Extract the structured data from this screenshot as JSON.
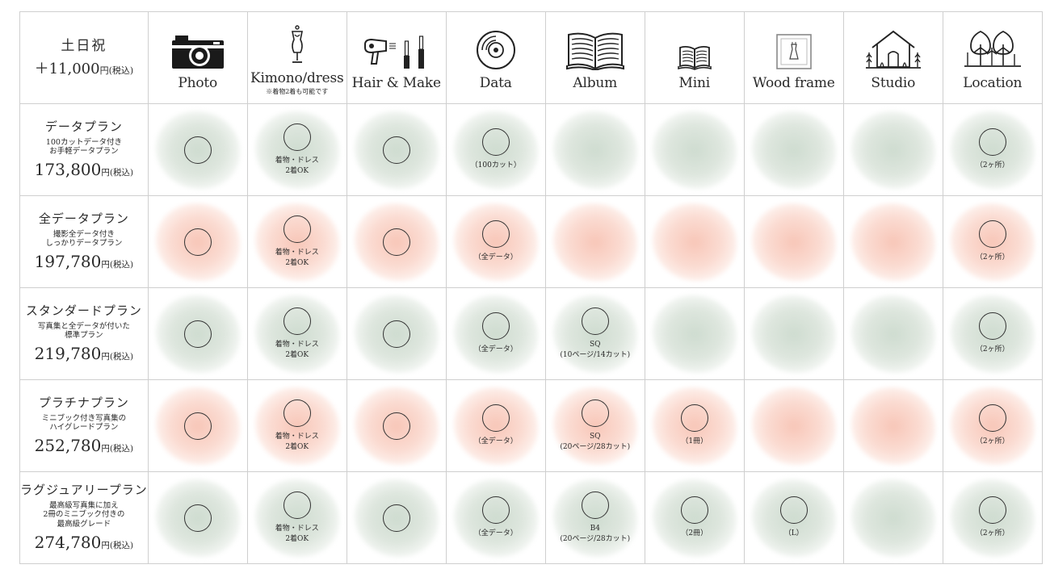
{
  "corner": {
    "days": "土日祝",
    "price": "＋11,000",
    "unit": "円(税込)"
  },
  "columns": [
    {
      "label": "Photo",
      "icon": "camera-icon",
      "note": ""
    },
    {
      "label": "Kimono/dress",
      "icon": "dress-form-icon",
      "note": "※着物2着も可能です"
    },
    {
      "label": "Hair & Make",
      "icon": "hairdryer-mascara-icon",
      "note": ""
    },
    {
      "label": "Data",
      "icon": "disc-icon",
      "note": ""
    },
    {
      "label": "Album",
      "icon": "open-book-icon",
      "note": ""
    },
    {
      "label": "Mini",
      "icon": "small-book-icon",
      "note": ""
    },
    {
      "label": "Wood frame",
      "icon": "frame-icon",
      "note": ""
    },
    {
      "label": "Studio",
      "icon": "studio-house-icon",
      "note": ""
    },
    {
      "label": "Location",
      "icon": "trees-icon",
      "note": ""
    }
  ],
  "plans": [
    {
      "name": "データプラン",
      "desc": "100カットデータ付き\nお手軽データプラン",
      "price": "173,800",
      "unit": "円(税込)",
      "tint": "green",
      "cells": [
        {
          "mark": true,
          "note": ""
        },
        {
          "mark": true,
          "note": "着物・ドレス\n2着OK"
        },
        {
          "mark": true,
          "note": ""
        },
        {
          "mark": true,
          "note": "（100カット）"
        },
        {
          "mark": false,
          "note": ""
        },
        {
          "mark": false,
          "note": ""
        },
        {
          "mark": false,
          "note": ""
        },
        {
          "mark": false,
          "note": ""
        },
        {
          "mark": true,
          "note": "（2ヶ所）"
        }
      ]
    },
    {
      "name": "全データプラン",
      "desc": "撮影全データ付き\nしっかりデータプラン",
      "price": "197,780",
      "unit": "円(税込)",
      "tint": "pink",
      "cells": [
        {
          "mark": true,
          "note": ""
        },
        {
          "mark": true,
          "note": "着物・ドレス\n2着OK"
        },
        {
          "mark": true,
          "note": ""
        },
        {
          "mark": true,
          "note": "（全データ）"
        },
        {
          "mark": false,
          "note": ""
        },
        {
          "mark": false,
          "note": ""
        },
        {
          "mark": false,
          "note": ""
        },
        {
          "mark": false,
          "note": ""
        },
        {
          "mark": true,
          "note": "（2ヶ所）"
        }
      ]
    },
    {
      "name": "スタンダードプラン",
      "desc": "写真集と全データが付いた\n標準プラン",
      "price": "219,780",
      "unit": "円(税込)",
      "tint": "green",
      "cells": [
        {
          "mark": true,
          "note": ""
        },
        {
          "mark": true,
          "note": "着物・ドレス\n2着OK"
        },
        {
          "mark": true,
          "note": ""
        },
        {
          "mark": true,
          "note": "（全データ）"
        },
        {
          "mark": true,
          "note": "SQ\n(10ページ/14カット)"
        },
        {
          "mark": false,
          "note": ""
        },
        {
          "mark": false,
          "note": ""
        },
        {
          "mark": false,
          "note": ""
        },
        {
          "mark": true,
          "note": "（2ヶ所）"
        }
      ]
    },
    {
      "name": "プラチナプラン",
      "desc": "ミニブック付き写真集の\nハイグレードプラン",
      "price": "252,780",
      "unit": "円(税込)",
      "tint": "pink",
      "cells": [
        {
          "mark": true,
          "note": ""
        },
        {
          "mark": true,
          "note": "着物・ドレス\n2着OK"
        },
        {
          "mark": true,
          "note": ""
        },
        {
          "mark": true,
          "note": "（全データ）"
        },
        {
          "mark": true,
          "note": "SQ\n(20ページ/28カット)"
        },
        {
          "mark": true,
          "note": "（1冊）"
        },
        {
          "mark": false,
          "note": ""
        },
        {
          "mark": false,
          "note": ""
        },
        {
          "mark": true,
          "note": "（2ヶ所）"
        }
      ]
    },
    {
      "name": "ラグジュアリープラン",
      "desc": "最高級写真集に加え\n2冊のミニブック付きの\n最高級グレード",
      "price": "274,780",
      "unit": "円(税込)",
      "tint": "green",
      "cells": [
        {
          "mark": true,
          "note": ""
        },
        {
          "mark": true,
          "note": "着物・ドレス\n2着OK"
        },
        {
          "mark": true,
          "note": ""
        },
        {
          "mark": true,
          "note": "（全データ）"
        },
        {
          "mark": true,
          "note": "B4\n(20ページ/28カット)"
        },
        {
          "mark": true,
          "note": "（2冊）"
        },
        {
          "mark": true,
          "note": "（L）"
        },
        {
          "mark": false,
          "note": ""
        },
        {
          "mark": true,
          "note": "（2ヶ所）"
        }
      ]
    }
  ]
}
